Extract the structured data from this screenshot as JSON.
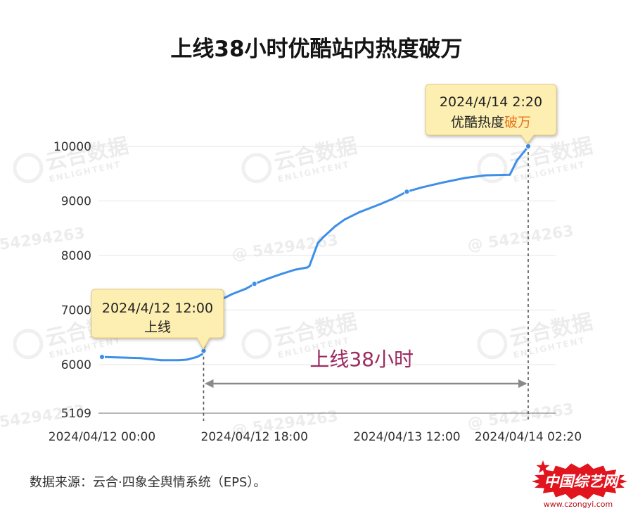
{
  "chart_data": {
    "type": "line",
    "title": "上线38小时优酷站内热度破万",
    "xlim": [
      "2024/04/12 00:00",
      "2024/04/14 02:20"
    ],
    "ylim": [
      5109,
      10000
    ],
    "x_ticks": [
      "2024/04/12 00:00",
      "2024/04/12 18:00",
      "2024/04/13 12:00",
      "2024/04/14 02:20"
    ],
    "y_ticks": [
      10000,
      9000,
      8000,
      7000,
      6000,
      5109
    ],
    "grid": true,
    "legend": "none",
    "series": [
      {
        "x": [
          "2024/04/12 00:00",
          "2024/04/12 04:30",
          "2024/04/12 07:00",
          "2024/04/12 09:00",
          "2024/04/12 10:00",
          "2024/04/12 11:15",
          "2024/04/12 11:50",
          "2024/04/12 12:00",
          "2024/04/12 13:00",
          "2024/04/12 13:40",
          "2024/04/12 15:20",
          "2024/04/12 17:00",
          "2024/04/12 18:00",
          "2024/04/12 19:30",
          "2024/04/12 21:10",
          "2024/04/12 22:50",
          "2024/04/13 00:15",
          "2024/04/13 00:30",
          "2024/04/13 01:30",
          "2024/04/13 02:10",
          "2024/04/13 03:30",
          "2024/04/13 04:40",
          "2024/04/13 06:20",
          "2024/04/13 08:50",
          "2024/04/13 10:30",
          "2024/04/13 12:00",
          "2024/04/13 13:50",
          "2024/04/13 16:20",
          "2024/04/13 18:50",
          "2024/04/13 21:15",
          "2024/04/14 00:10",
          "2024/04/14 01:00",
          "2024/04/14 01:50",
          "2024/04/14 02:20"
        ],
        "y": [
          6140,
          6120,
          6080,
          6080,
          6090,
          6140,
          6190,
          6250,
          7070,
          7160,
          7290,
          7390,
          7480,
          7570,
          7660,
          7740,
          7780,
          7810,
          8230,
          8340,
          8530,
          8660,
          8790,
          8940,
          9050,
          9170,
          9250,
          9340,
          9420,
          9470,
          9480,
          9740,
          9900,
          10000
        ]
      }
    ],
    "annotations": [
      {
        "x": "2024/04/12 12:00",
        "date_label": "2024/4/12 12:00",
        "text": "上线"
      },
      {
        "x": "2024/04/14 02:20",
        "date_label": "2024/4/14 2:20",
        "text": "优酷热度",
        "highlight": "破万"
      }
    ],
    "span": {
      "from": "2024/04/12 12:00",
      "to": "2024/04/14 02:20",
      "label": "上线38小时"
    }
  },
  "source": "数据来源：云合·四象全舆情系统（EPS）。",
  "watermark": {
    "brand": "云合数据",
    "brand_en": "ENLIGHTENT",
    "account": "@ 54294263"
  },
  "logo": {
    "name": "中国综艺网",
    "url": "www.czongyi.com"
  },
  "colors": {
    "line": "#3d8fe8",
    "callout_fill": "#fdefb2",
    "highlight": "#e8731a",
    "span_label": "#9b2a60",
    "logo": "#e2141d",
    "logo_url": "#b5121b"
  }
}
